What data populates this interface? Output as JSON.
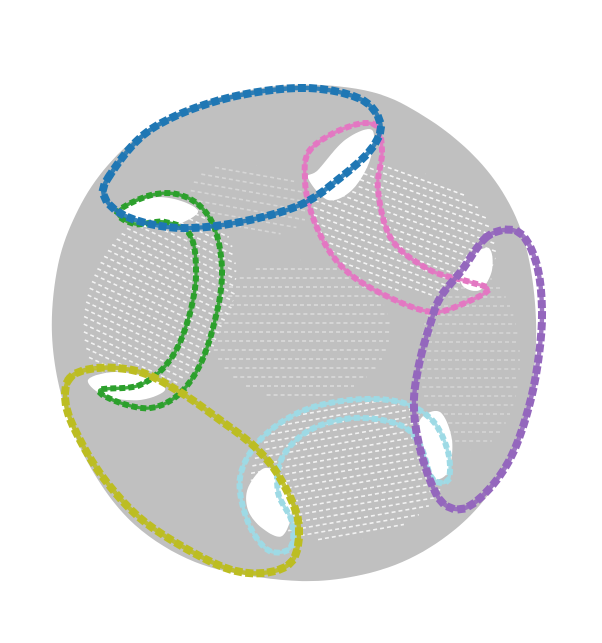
{
  "figure": {
    "background": "#ffffff",
    "sphere_color": "#c0c0c0",
    "hole_color": "#ffffff",
    "loops": [
      {
        "name": "blue-loop",
        "color": "#1f77b4"
      },
      {
        "name": "pink-loop",
        "color": "#e377c2"
      },
      {
        "name": "green-loop",
        "color": "#2ca02c"
      },
      {
        "name": "purple-loop",
        "color": "#9467bd"
      },
      {
        "name": "olive-loop",
        "color": "#bcbd22"
      },
      {
        "name": "cyan-loop",
        "color": "#9edae5"
      }
    ]
  }
}
